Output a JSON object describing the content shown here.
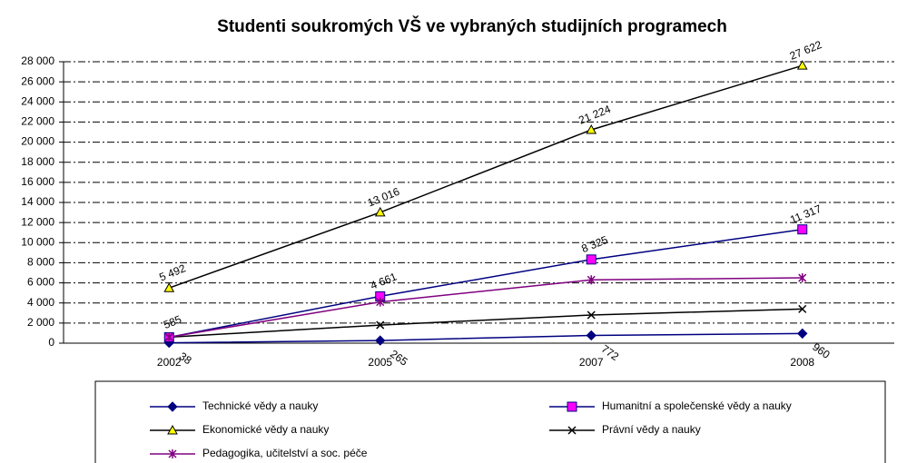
{
  "chart_data": {
    "type": "line",
    "title": "Studenti soukromých VŠ ve vybraných studijních programech",
    "categories": [
      "2002",
      "2005",
      "2007",
      "2008"
    ],
    "ylim": [
      0,
      28000
    ],
    "yticks": [
      0,
      {
        "value": 2000,
        "label": "2 000"
      },
      {
        "value": 4000,
        "label": "4 000"
      },
      {
        "value": 6000,
        "label": "6 000"
      },
      {
        "value": 8000,
        "label": "8 000"
      },
      {
        "value": 10000,
        "label": "10 000"
      },
      {
        "value": 12000,
        "label": "12 000"
      },
      {
        "value": 14000,
        "label": "14 000"
      },
      {
        "value": 16000,
        "label": "16 000"
      },
      {
        "value": 18000,
        "label": "18 000"
      },
      {
        "value": 20000,
        "label": "20 000"
      },
      {
        "value": 22000,
        "label": "22 000"
      },
      {
        "value": 24000,
        "label": "24 000"
      },
      {
        "value": 26000,
        "label": "26 000"
      },
      {
        "value": 28000,
        "label": "28 000"
      }
    ],
    "grid": true,
    "legend": "bottom",
    "series": [
      {
        "name": "Technické vědy a nauky",
        "color": "#000080",
        "marker": "diamond",
        "marker_color": "#000080",
        "values": [
          38,
          265,
          772,
          960
        ],
        "value_labels": [
          "38",
          "265",
          "772",
          "960"
        ]
      },
      {
        "name": "Humanitní a společenské vědy a nauky",
        "color": "#000080",
        "marker": "square",
        "marker_color": "#ff00ff",
        "values": [
          585,
          4661,
          8325,
          11317
        ],
        "value_labels": [
          "585",
          "4 661",
          "8 325",
          "11 317"
        ]
      },
      {
        "name": "Ekonomické vědy a nauky",
        "color": "#000000",
        "marker": "triangle",
        "marker_color": "#ffff00",
        "values": [
          5492,
          13016,
          21224,
          27622
        ],
        "value_labels": [
          "5 492",
          "13 016",
          "21 224",
          "27 622"
        ]
      },
      {
        "name": "Právní vědy a nauky",
        "color": "#000000",
        "marker": "x",
        "marker_color": "#000000",
        "values": [
          600,
          1800,
          2800,
          3400
        ]
      },
      {
        "name": "Pedagogika, učitelství a soc. péče",
        "color": "#800080",
        "marker": "star",
        "marker_color": "#800080",
        "values": [
          600,
          4100,
          6300,
          6500
        ]
      }
    ]
  }
}
